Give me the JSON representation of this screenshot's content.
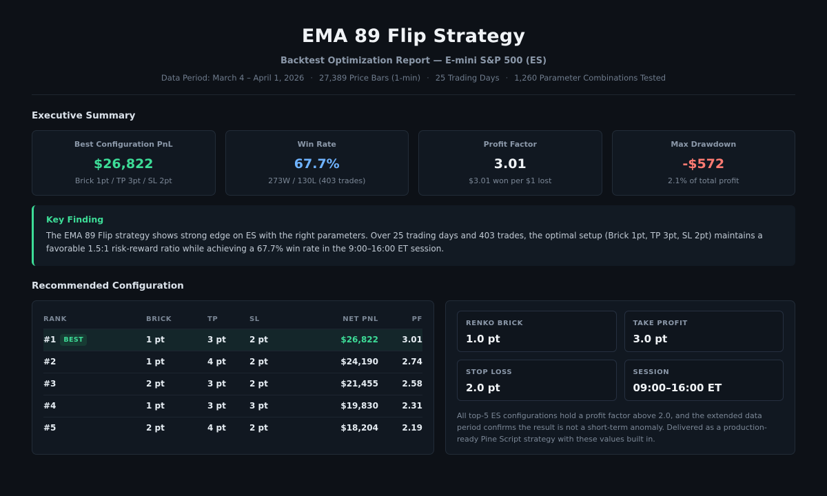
{
  "header": {
    "title": "EMA 89 Flip Strategy",
    "subtitle": "Backtest Optimization Report — E-mini S&P 500 (ES)",
    "meta": [
      "Data Period: March 4 – April 1, 2026",
      "27,389 Price Bars (1-min)",
      "25 Trading Days",
      "1,260 Parameter Combinations Tested"
    ],
    "separator": "·"
  },
  "summary": {
    "title": "Executive Summary",
    "kpis": [
      {
        "label": "Best Configuration PnL",
        "value": "$26,822",
        "sub": "Brick 1pt / TP 3pt / SL 2pt",
        "color": "#3ddc97"
      },
      {
        "label": "Win Rate",
        "value": "67.7%",
        "sub": "273W / 130L (403 trades)",
        "color": "#6fb3ff"
      },
      {
        "label": "Profit Factor",
        "value": "3.01",
        "sub": "$3.01 won per $1 lost",
        "color": "#f0f3f6"
      },
      {
        "label": "Max Drawdown",
        "value": "-$572",
        "sub": "2.1% of total profit",
        "color": "#ff7b72"
      }
    ]
  },
  "finding": {
    "title": "Key Finding",
    "text": "The EMA 89 Flip strategy shows strong edge on ES with the right parameters. Over 25 trading days and 403 trades, the optimal setup (Brick 1pt, TP 3pt, SL 2pt) maintains a favorable 1.5:1 risk-reward ratio while achieving a 67.7% win rate in the 9:00–16:00 ET session."
  },
  "recommended": {
    "title": "Recommended Configuration",
    "columns": [
      "RANK",
      "BRICK",
      "TP",
      "SL",
      "NET PNL",
      "PF"
    ],
    "best_badge": "BEST",
    "rows": [
      {
        "rank": "#1",
        "brick": "1 pt",
        "tp": "3 pt",
        "sl": "2 pt",
        "pnl": "$26,822",
        "pf": "3.01"
      },
      {
        "rank": "#2",
        "brick": "1 pt",
        "tp": "4 pt",
        "sl": "2 pt",
        "pnl": "$24,190",
        "pf": "2.74"
      },
      {
        "rank": "#3",
        "brick": "2 pt",
        "tp": "3 pt",
        "sl": "2 pt",
        "pnl": "$21,455",
        "pf": "2.58"
      },
      {
        "rank": "#4",
        "brick": "1 pt",
        "tp": "3 pt",
        "sl": "3 pt",
        "pnl": "$19,830",
        "pf": "2.31"
      },
      {
        "rank": "#5",
        "brick": "2 pt",
        "tp": "4 pt",
        "sl": "2 pt",
        "pnl": "$18,204",
        "pf": "2.19"
      }
    ],
    "config": [
      {
        "label": "RENKO BRICK",
        "value": "1.0 pt"
      },
      {
        "label": "TAKE PROFIT",
        "value": "3.0 pt"
      },
      {
        "label": "STOP LOSS",
        "value": "2.0 pt"
      },
      {
        "label": "SESSION",
        "value": "09:00–16:00 ET"
      }
    ],
    "note": "All top-5 ES configurations hold a profit factor above 2.0, and the extended data period confirms the result is not a short-term anomaly. Delivered as a production-ready Pine Script strategy with these values built in."
  }
}
